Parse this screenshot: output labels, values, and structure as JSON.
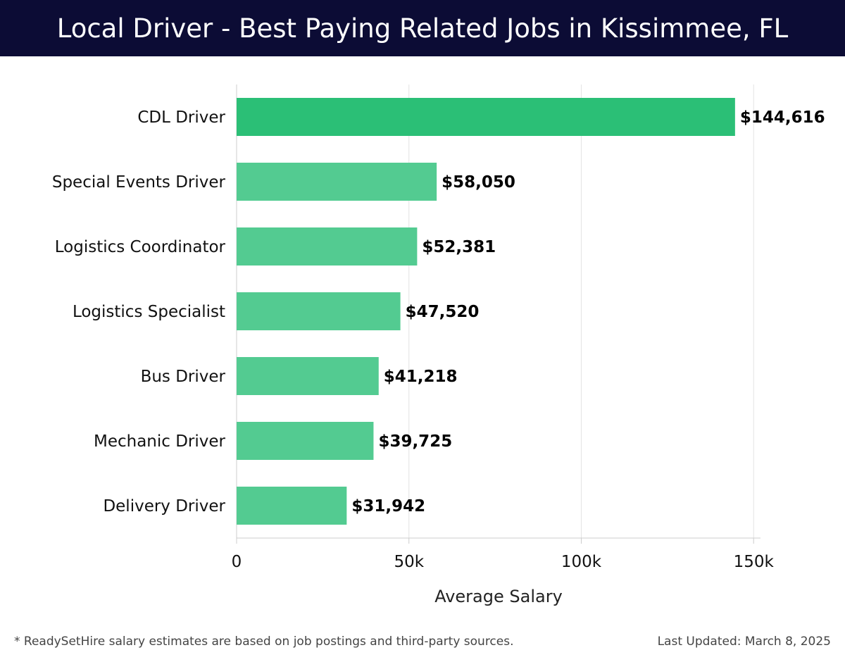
{
  "header": {
    "title": "Local Driver - Best Paying Related Jobs in Kissimmee, FL"
  },
  "chart_data": {
    "type": "bar",
    "orientation": "horizontal",
    "categories": [
      "CDL Driver",
      "Special Events Driver",
      "Logistics Coordinator",
      "Logistics Specialist",
      "Bus Driver",
      "Mechanic Driver",
      "Delivery Driver"
    ],
    "values": [
      144616,
      58050,
      52381,
      47520,
      41218,
      39725,
      31942
    ],
    "value_labels": [
      "$144,616",
      "$58,050",
      "$52,381",
      "$47,520",
      "$41,218",
      "$39,725",
      "$31,942"
    ],
    "xlabel": "Average Salary",
    "ylabel": "",
    "xlim": [
      0,
      152000
    ],
    "x_ticks": [
      0,
      50000,
      100000,
      150000
    ],
    "x_tick_labels": [
      "0",
      "50k",
      "100k",
      "150k"
    ],
    "grid": true,
    "colors": {
      "highlight": "#2bbf76",
      "bar": "#53cb91",
      "grid": "#e3e3e3",
      "axis": "#cccccc"
    }
  },
  "footer": {
    "note": "* ReadySetHire salary estimates are based on job postings and third-party sources.",
    "updated": "Last Updated: March 8, 2025"
  }
}
